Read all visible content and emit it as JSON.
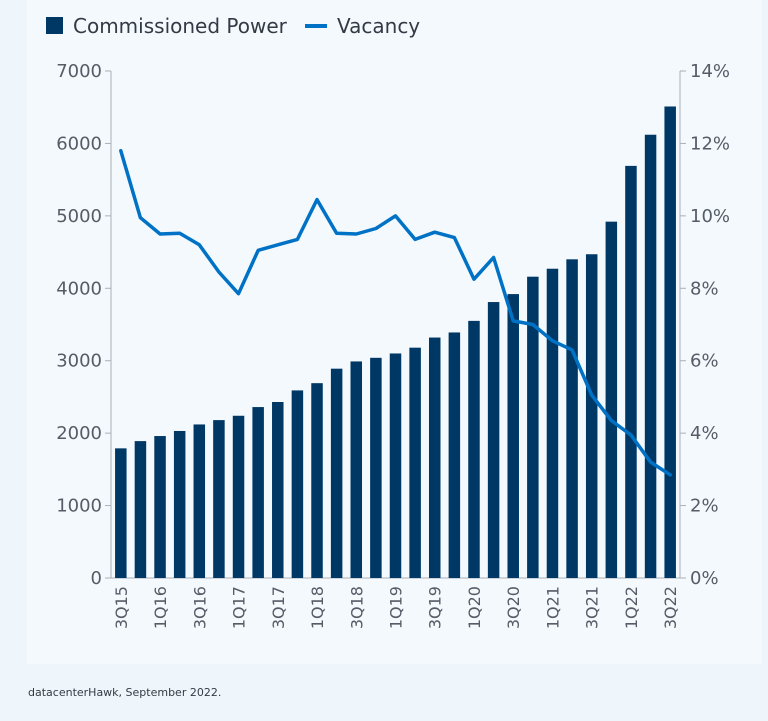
{
  "chart_data": {
    "type": "bar",
    "legend": [
      {
        "name": "Commissioned Power",
        "kind": "bar",
        "color": "#003865"
      },
      {
        "name": "Vacancy",
        "kind": "line",
        "color": "#0072c5"
      }
    ],
    "categories": [
      "3Q15",
      "4Q15",
      "1Q16",
      "2Q16",
      "3Q16",
      "4Q16",
      "1Q17",
      "2Q17",
      "3Q17",
      "4Q17",
      "1Q18",
      "2Q18",
      "3Q18",
      "4Q18",
      "1Q19",
      "2Q19",
      "3Q19",
      "4Q19",
      "1Q20",
      "2Q20",
      "3Q20",
      "4Q20",
      "1Q21",
      "2Q21",
      "3Q21",
      "4Q21",
      "1Q22",
      "2Q22",
      "3Q22"
    ],
    "x_tick_labels": [
      "3Q15",
      "",
      "1Q16",
      "",
      "3Q16",
      "",
      "1Q17",
      "",
      "3Q17",
      "",
      "1Q18",
      "",
      "3Q18",
      "",
      "1Q19",
      "",
      "3Q19",
      "",
      "1Q20",
      "",
      "3Q20",
      "",
      "1Q21",
      "",
      "3Q21",
      "",
      "1Q22",
      "",
      "3Q22"
    ],
    "series": [
      {
        "name": "Commissioned Power",
        "type": "bar",
        "axis": "left",
        "values": [
          1790,
          1890,
          1960,
          2030,
          2120,
          2180,
          2240,
          2360,
          2430,
          2590,
          2690,
          2890,
          2990,
          3040,
          3100,
          3180,
          3320,
          3390,
          3550,
          3810,
          3920,
          4160,
          4270,
          4400,
          4470,
          4920,
          5690,
          6120,
          6510
        ]
      },
      {
        "name": "Vacancy",
        "type": "line",
        "axis": "right",
        "values": [
          11.8,
          9.95,
          9.5,
          9.52,
          9.2,
          8.45,
          7.85,
          9.05,
          9.2,
          9.35,
          10.45,
          9.52,
          9.5,
          9.65,
          10.0,
          9.35,
          9.55,
          9.4,
          8.25,
          8.85,
          7.1,
          7.0,
          6.55,
          6.3,
          5.05,
          4.35,
          3.95,
          3.2,
          2.85
        ]
      }
    ],
    "y_left": {
      "min": 0,
      "max": 7000,
      "ticks": [
        "0",
        "1000",
        "2000",
        "3000",
        "4000",
        "5000",
        "6000",
        "7000"
      ]
    },
    "y_right": {
      "min": 0,
      "max": 14,
      "ticks": [
        "0%",
        "2%",
        "4%",
        "6%",
        "8%",
        "10%",
        "12%",
        "14%"
      ]
    },
    "legend_position": "top-left",
    "grid": false
  },
  "source_note": "datacenterHawk, September 2022."
}
